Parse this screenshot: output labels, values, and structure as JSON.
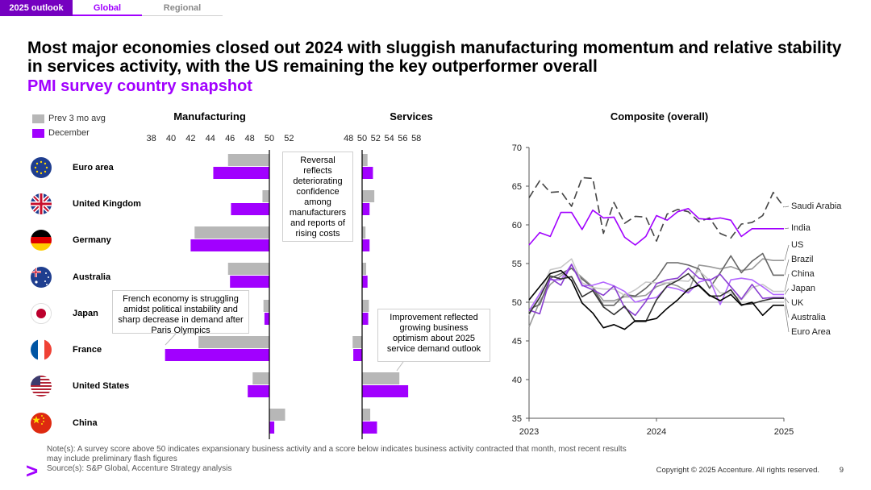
{
  "tabs": [
    {
      "label": "2025 outlook"
    },
    {
      "label": "Global"
    },
    {
      "label": "Regional"
    }
  ],
  "headline": "Most major economies closed out 2024 with sluggish manufacturing momentum and relative stability in services activity, with the US remaining the key outperformer overall",
  "subtitle": "PMI survey country snapshot",
  "legend": {
    "prev": "Prev 3 mo avg",
    "dec": "December"
  },
  "colors": {
    "prev": "#b7b7b7",
    "dec": "#a100ff",
    "accent": "#a100ff",
    "tab_active": "#7500c0"
  },
  "callouts": {
    "euro": "Reversal reflects deteriorating confidence among manufacturers and reports of rising costs",
    "france": "French economy is struggling amidst political instability and sharp decrease in demand after Paris Olympics",
    "us": "Improvement reflected growing business optimism about 2025 service demand outlook"
  },
  "footer": {
    "note": "Note(s): A survey score above 50 indicates expansionary business activity and a score below indicates business activity contracted that month, most recent results may include preliminary flash figures",
    "source": "Source(s): S&P Global, Accenture Strategy analysis",
    "copyright": "Copyright © 2025 Accenture. All rights reserved.",
    "page": "9",
    "logo": ">"
  },
  "chart_data": [
    {
      "type": "bar",
      "title": "Manufacturing",
      "orientation": "horizontal",
      "xlim": [
        38,
        58
      ],
      "baseline": 50,
      "ticks": [
        38,
        40,
        42,
        44,
        46,
        48,
        50,
        52
      ],
      "categories": [
        "Euro area",
        "United Kingdom",
        "Germany",
        "Australia",
        "Japan",
        "France",
        "United States",
        "China"
      ],
      "series": [
        {
          "name": "Prev 3 mo avg",
          "values": [
            45.8,
            49.3,
            42.4,
            45.8,
            49.4,
            42.8,
            48.3,
            51.6
          ]
        },
        {
          "name": "December",
          "values": [
            44.3,
            46.1,
            42.0,
            46.0,
            49.5,
            39.4,
            47.8,
            50.5
          ]
        }
      ]
    },
    {
      "type": "bar",
      "title": "Services",
      "orientation": "horizontal",
      "xlim": [
        38,
        58
      ],
      "baseline": 50,
      "ticks": [
        48,
        50,
        52,
        54,
        56,
        58
      ],
      "categories": [
        "Euro area",
        "United Kingdom",
        "Germany",
        "Australia",
        "Japan",
        "France",
        "United States",
        "China"
      ],
      "series": [
        {
          "name": "Prev 3 mo avg",
          "values": [
            50.8,
            51.8,
            50.5,
            50.6,
            51.0,
            48.6,
            55.5,
            51.2
          ]
        },
        {
          "name": "December",
          "values": [
            51.6,
            51.1,
            51.1,
            50.8,
            50.9,
            48.7,
            56.8,
            52.2
          ]
        }
      ]
    },
    {
      "type": "line",
      "title": "Composite (overall)",
      "xlabel": "",
      "ylabel": "",
      "ylim": [
        35,
        70
      ],
      "yticks": [
        35,
        40,
        45,
        50,
        55,
        60,
        65,
        70
      ],
      "x_ticks": [
        "2023",
        "2024",
        "2025"
      ],
      "x": [
        0,
        1,
        2,
        3,
        4,
        5,
        6,
        7,
        8,
        9,
        10,
        11,
        12,
        13,
        14,
        15,
        16,
        17,
        18,
        19,
        20,
        21,
        22,
        23,
        24
      ],
      "reference_line": 50,
      "series": [
        {
          "name": "Saudi Arabia",
          "dash": true,
          "color": "#444444",
          "values": [
            63.5,
            65.7,
            64.2,
            64.3,
            62.4,
            66.1,
            66.0,
            58.9,
            62.9,
            60.2,
            61.1,
            61.0,
            57.9,
            61.4,
            62.0,
            61.7,
            60.4,
            60.9,
            58.9,
            58.3,
            60.1,
            60.3,
            61.2,
            64.2,
            62.3
          ]
        },
        {
          "name": "India",
          "color": "#a100ff",
          "values": [
            57.4,
            59.0,
            58.5,
            61.6,
            61.6,
            59.4,
            61.9,
            60.9,
            61.0,
            58.4,
            57.4,
            58.5,
            61.2,
            60.6,
            61.7,
            62.1,
            60.8,
            60.7,
            60.9,
            60.6,
            58.5,
            59.5,
            59.5,
            59.5,
            59.5
          ]
        },
        {
          "name": "US",
          "color": "#999999",
          "values": [
            46.8,
            50.1,
            52.3,
            53.4,
            54.4,
            53.2,
            52.0,
            50.2,
            50.2,
            50.7,
            50.7,
            50.9,
            52.0,
            52.5,
            52.1,
            51.3,
            54.8,
            54.6,
            54.3,
            54.6,
            54.1,
            54.3,
            55.6,
            55.4,
            55.4
          ]
        },
        {
          "name": "Brazil",
          "color": "#666666",
          "values": [
            49.1,
            49.7,
            53.1,
            53.7,
            54.4,
            53.0,
            51.9,
            49.6,
            49.6,
            51.0,
            50.8,
            51.8,
            53.1,
            55.1,
            55.1,
            54.8,
            54.3,
            51.8,
            53.8,
            56.0,
            53.8,
            55.3,
            56.3,
            53.5,
            53.5
          ]
        },
        {
          "name": "China",
          "color": "#c8c8c8",
          "values": [
            48.3,
            51.1,
            54.2,
            54.5,
            55.6,
            52.5,
            51.9,
            51.7,
            51.7,
            50.9,
            51.6,
            52.6,
            52.5,
            52.5,
            52.8,
            52.7,
            54.1,
            52.8,
            51.2,
            51.2,
            50.3,
            51.9,
            52.3,
            51.4,
            51.4
          ]
        },
        {
          "name": "Japan",
          "color": "#b266ff",
          "values": [
            48.9,
            51.1,
            52.9,
            52.9,
            54.9,
            52.1,
            52.2,
            52.6,
            52.1,
            51.4,
            50.0,
            50.4,
            50.6,
            52.0,
            51.7,
            51.2,
            52.6,
            53.0,
            49.7,
            52.9,
            53.1,
            52.9,
            52.0,
            51.0,
            51.0
          ]
        },
        {
          "name": "UK",
          "color": "#8a3fd1",
          "values": [
            49.0,
            48.5,
            53.1,
            52.2,
            54.9,
            52.2,
            51.6,
            50.9,
            52.1,
            49.3,
            48.3,
            50.1,
            52.4,
            52.9,
            53.1,
            54.4,
            53.1,
            52.8,
            53.6,
            52.0,
            50.4,
            52.3,
            50.5,
            50.6,
            50.6
          ]
        },
        {
          "name": "Australia",
          "color": "#333333",
          "values": [
            48.5,
            50.6,
            53.4,
            53.0,
            53.3,
            50.7,
            51.5,
            49.4,
            48.4,
            49.5,
            47.5,
            47.5,
            50.3,
            52.1,
            52.8,
            53.7,
            52.1,
            50.8,
            50.8,
            51.6,
            49.7,
            49.8,
            50.2,
            50.5,
            50.5
          ]
        },
        {
          "name": "Euro Area",
          "color": "#000000",
          "values": [
            50.3,
            52.0,
            53.7,
            54.1,
            52.8,
            49.9,
            48.6,
            46.7,
            47.1,
            46.5,
            47.6,
            47.6,
            47.9,
            49.2,
            50.3,
            51.7,
            52.2,
            50.9,
            50.2,
            51.0,
            49.6,
            50.0,
            48.3,
            49.6,
            49.6
          ]
        }
      ]
    }
  ]
}
